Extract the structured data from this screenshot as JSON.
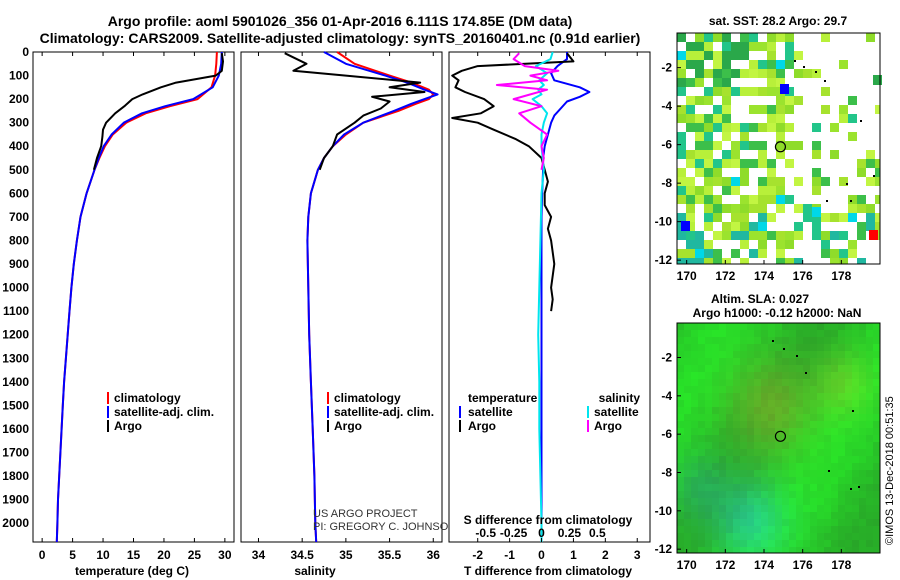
{
  "header": {
    "title_line1": "Argo profile: aoml 5901026_356 01-Apr-2016 6.111S 174.85E (DM data)",
    "title_line2": "Climatology: CARS2009. Satellite-adjusted climatology: synTS_20160401.nc (0.91d earlier)"
  },
  "colors": {
    "climatology": "#ff0000",
    "satellite": "#0000ff",
    "argo": "#000000",
    "sat_salinity": "#00e5ee",
    "argo_salinity": "#ff00ff"
  },
  "depth_axis": {
    "ticks": [
      0,
      100,
      200,
      300,
      400,
      500,
      600,
      700,
      800,
      900,
      1000,
      1100,
      1200,
      1300,
      1400,
      1500,
      1600,
      1700,
      1800,
      1900,
      2000
    ],
    "range": [
      0,
      2080
    ]
  },
  "chart_data": [
    {
      "id": "temperature",
      "type": "line",
      "xlabel": "temperature (deg C)",
      "xlim": [
        -1.5,
        31.5
      ],
      "xticks": [
        0,
        5,
        10,
        15,
        20,
        25,
        30
      ],
      "ylabel": "depth",
      "legend": [
        "climatology",
        "satellite-adj. clim.",
        "Argo"
      ],
      "series": [
        {
          "name": "climatology",
          "color": "#ff0000",
          "depth": [
            0,
            50,
            100,
            150,
            200,
            230,
            260,
            300,
            350,
            400,
            450,
            500,
            600,
            700,
            800,
            900,
            1000,
            1100,
            1200,
            1300,
            1400,
            1500,
            1600,
            1700,
            1800,
            1900,
            2000,
            2080
          ],
          "values": [
            28.7,
            28.6,
            28.4,
            27.8,
            25.5,
            21,
            17,
            13.8,
            11.6,
            10.3,
            9.4,
            8.6,
            7.3,
            6.3,
            5.7,
            5.2,
            4.8,
            4.5,
            4.2,
            3.9,
            3.6,
            3.4,
            3.2,
            3.0,
            2.8,
            2.6,
            2.5,
            2.4
          ]
        },
        {
          "name": "satellite-adj. clim.",
          "color": "#0000ff",
          "depth": [
            0,
            50,
            100,
            150,
            200,
            230,
            260,
            300,
            350,
            400,
            450,
            500,
            600,
            700,
            800,
            900,
            1000,
            1100,
            1200,
            1300,
            1400,
            1500,
            1600,
            1700,
            1800,
            1900,
            2000,
            2080
          ],
          "values": [
            29.5,
            29.4,
            29.0,
            28.0,
            24.8,
            20.2,
            16.4,
            13.4,
            11.4,
            10.1,
            9.3,
            8.6,
            7.3,
            6.3,
            5.7,
            5.2,
            4.8,
            4.5,
            4.2,
            3.9,
            3.6,
            3.4,
            3.2,
            3.0,
            2.8,
            2.6,
            2.5,
            2.4
          ]
        },
        {
          "name": "Argo",
          "color": "#000000",
          "depth": [
            5,
            40,
            80,
            100,
            130,
            150,
            180,
            200,
            230,
            260,
            300,
            330,
            360,
            400,
            450,
            500
          ],
          "values": [
            29.5,
            29.7,
            29.5,
            28.5,
            22,
            19.5,
            16.5,
            14.8,
            13.5,
            12,
            10.5,
            10,
            9.9,
            9.7,
            9.0,
            8.5
          ]
        }
      ]
    },
    {
      "id": "salinity",
      "type": "line",
      "xlabel": "salinity",
      "xlim": [
        33.8,
        36.1
      ],
      "xticks": [
        34,
        34.5,
        35,
        35.5,
        36
      ],
      "ylabel": "depth",
      "legend": [
        "climatology",
        "satellite-adj. clim.",
        "Argo"
      ],
      "series": [
        {
          "name": "climatology",
          "color": "#ff0000",
          "depth": [
            0,
            50,
            100,
            130,
            160,
            180,
            200,
            220,
            250,
            300,
            350,
            400,
            450,
            500,
            600,
            700,
            800,
            1000,
            1200,
            1400,
            1600,
            1800,
            2000,
            2080
          ],
          "values": [
            34.9,
            35.1,
            35.5,
            35.75,
            35.95,
            36.0,
            35.95,
            35.8,
            35.6,
            35.2,
            35.0,
            34.85,
            34.75,
            34.68,
            34.6,
            34.57,
            34.56,
            34.57,
            34.58,
            34.6,
            34.62,
            34.64,
            34.65,
            34.66
          ]
        },
        {
          "name": "satellite-adj. clim.",
          "color": "#0000ff",
          "depth": [
            0,
            50,
            100,
            130,
            160,
            180,
            200,
            220,
            250,
            300,
            350,
            400,
            450,
            500,
            600,
            700,
            800,
            1000,
            1200,
            1400,
            1600,
            1800,
            2000,
            2080
          ],
          "values": [
            34.75,
            35.0,
            35.45,
            35.7,
            35.9,
            36.05,
            35.9,
            35.75,
            35.55,
            35.2,
            34.98,
            34.85,
            34.75,
            34.68,
            34.6,
            34.57,
            34.56,
            34.57,
            34.58,
            34.6,
            34.62,
            34.64,
            34.65,
            34.66
          ]
        },
        {
          "name": "Argo",
          "color": "#000000",
          "depth": [
            5,
            50,
            80,
            100,
            130,
            150,
            170,
            190,
            210,
            240,
            270,
            300,
            350,
            400,
            450,
            500
          ],
          "values": [
            34.3,
            34.55,
            34.4,
            35.0,
            35.85,
            35.5,
            35.9,
            35.3,
            35.5,
            35.4,
            35.2,
            35.1,
            34.9,
            34.85,
            34.75,
            34.7
          ]
        }
      ]
    },
    {
      "id": "difference",
      "type": "line",
      "xlabel": "T difference from climatology",
      "xlabel_top": "S difference from climatology",
      "xlim": [
        -2.9,
        3.4
      ],
      "xticks": [
        -2,
        -1,
        0,
        1,
        2,
        3
      ],
      "top_ticks": [
        "-0.5",
        "-0.25",
        "0",
        "0.25",
        "0.5"
      ],
      "top_tick_values": [
        -0.5,
        -0.25,
        0,
        0.25,
        0.5
      ],
      "s_scale": 3.5,
      "ylabel": "depth",
      "legend_left_title": "temperature",
      "legend_right_title": "salinity",
      "legend_left": [
        "satellite",
        "Argo"
      ],
      "legend_right": [
        "satellite",
        "Argo"
      ],
      "series": [
        {
          "name": "T satellite",
          "color": "#0000ff",
          "depth": [
            0,
            30,
            60,
            90,
            120,
            150,
            170,
            190,
            210,
            240,
            270,
            300,
            350,
            400,
            450,
            500,
            600,
            700,
            800,
            1000,
            1200,
            1400,
            1600,
            1800,
            2000,
            2080
          ],
          "values": [
            0.8,
            0.8,
            0.5,
            0.3,
            0.4,
            1.2,
            1.5,
            1.2,
            0.8,
            0.6,
            0.4,
            0.3,
            0.2,
            0.1,
            0.05,
            0.05,
            0.02,
            0,
            0,
            0,
            0,
            0,
            0,
            0,
            0,
            0
          ]
        },
        {
          "name": "T Argo",
          "color": "#000000",
          "depth": [
            5,
            40,
            60,
            80,
            100,
            120,
            150,
            170,
            200,
            230,
            260,
            280,
            300,
            330,
            370,
            400,
            450,
            500,
            550,
            600,
            650,
            700,
            750,
            800,
            900,
            1000,
            1050,
            1100
          ],
          "values": [
            0.8,
            1.0,
            -2.0,
            -2.5,
            -2.8,
            -2.6,
            -2.7,
            -2.4,
            -1.8,
            -1.5,
            -1.9,
            -2.8,
            -2.0,
            -1.5,
            -0.8,
            -0.4,
            0.0,
            0.1,
            0.2,
            0.1,
            0.1,
            0.3,
            0.2,
            0.3,
            0.4,
            0.3,
            0.35,
            0.3
          ]
        },
        {
          "name": "S satellite",
          "color": "#00e5ee",
          "depth": [
            0,
            30,
            60,
            90,
            120,
            140,
            160,
            180,
            200,
            230,
            260,
            300,
            350,
            400,
            500,
            600,
            800,
            1000,
            1200,
            1400,
            1600,
            1800,
            2000,
            2080
          ],
          "values": [
            0.1,
            0.08,
            -0.05,
            0.05,
            -0.02,
            0.02,
            -0.03,
            0.0,
            -0.08,
            0.0,
            0.05,
            0.02,
            0.0,
            0.0,
            0.02,
            0.0,
            -0.01,
            -0.02,
            -0.03,
            -0.02,
            -0.02,
            -0.01,
            0.0,
            0.0
          ]
        },
        {
          "name": "S Argo",
          "color": "#ff00ff",
          "depth": [
            5,
            30,
            60,
            80,
            100,
            120,
            140,
            160,
            180,
            200,
            230,
            260,
            300,
            350,
            400,
            450,
            500
          ],
          "values": [
            -0.2,
            -0.25,
            -0.15,
            0.15,
            -0.1,
            0.05,
            -0.4,
            0.05,
            -0.1,
            -0.25,
            0.0,
            -0.2,
            -0.1,
            0.05,
            0.0,
            0.02,
            0.0
          ]
        }
      ]
    }
  ],
  "credits": {
    "line1": "US ARGO PROJECT",
    "line2": "PI: GREGORY C. JOHNSON"
  },
  "maps": {
    "sst": {
      "title": "sat. SST: 28.2 Argo: 29.7",
      "xticks": [
        "170",
        "172",
        "174",
        "176",
        "178"
      ],
      "yticks": [
        "-2",
        "-4",
        "-6",
        "-8",
        "-10",
        "-12"
      ],
      "xrange": [
        169.5,
        180
      ],
      "yrange": [
        -12.2,
        -0.2
      ]
    },
    "sla": {
      "title_line1": "Altim. SLA: 0.027",
      "title_line2": "Argo h1000: -0.12 h2000: NaN",
      "xticks": [
        "170",
        "172",
        "174",
        "176",
        "178"
      ],
      "yticks": [
        "-2",
        "-4",
        "-6",
        "-8",
        "-10",
        "-12"
      ],
      "xrange": [
        169.5,
        180
      ],
      "yrange": [
        -12.2,
        -0.2
      ]
    },
    "float_position": {
      "lon": 174.85,
      "lat": -6.111
    }
  },
  "watermark": "©IMOS 13-Dec-2018 00:51:35"
}
